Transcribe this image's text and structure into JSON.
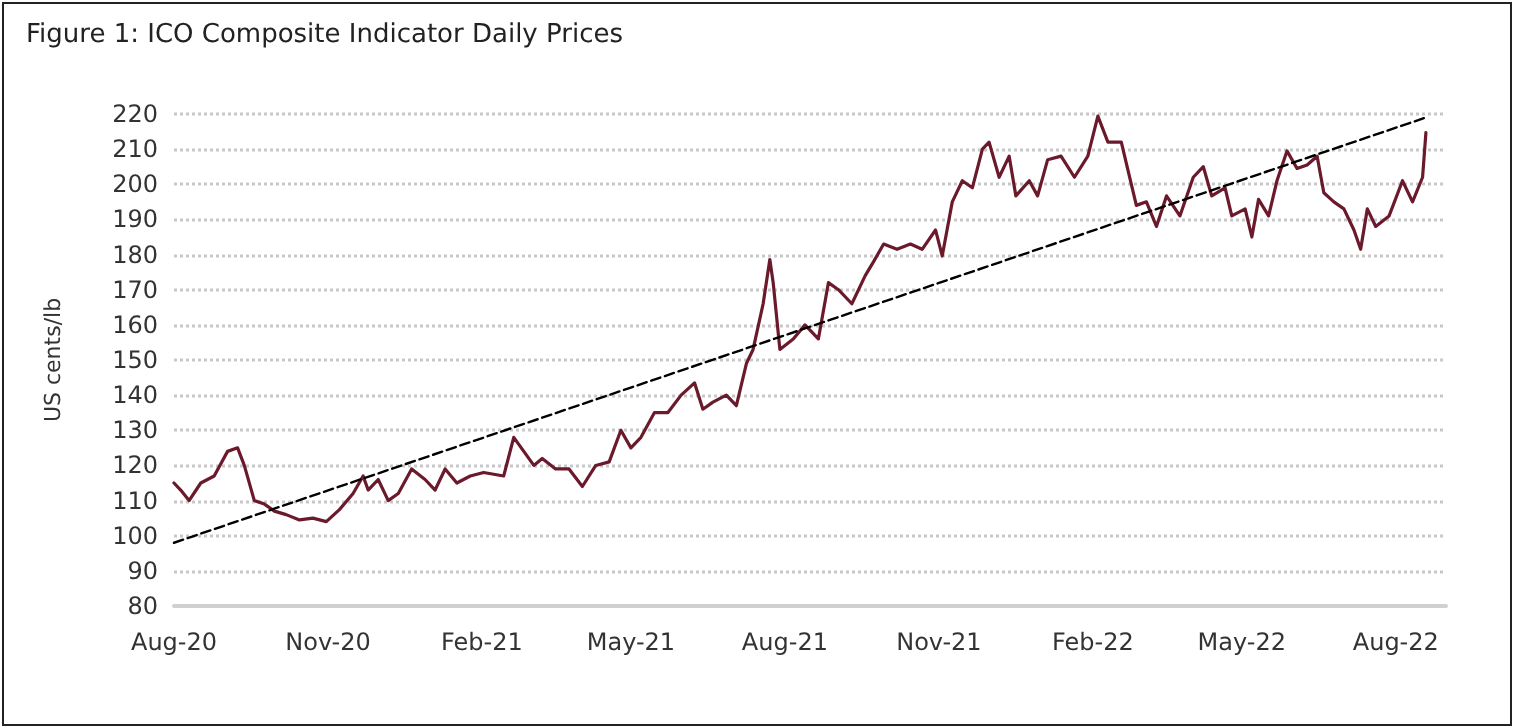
{
  "chart_data": {
    "type": "line",
    "title": "Figure 1: ICO Composite Indicator Daily Prices",
    "ylabel": "US cents/lb",
    "xlim": [
      "2020-08-01",
      "2022-08-31"
    ],
    "xticks": [
      {
        "value": "2020-08-01",
        "label": "Aug-20"
      },
      {
        "value": "2020-11-01",
        "label": "Nov-20"
      },
      {
        "value": "2021-02-01",
        "label": "Feb-21"
      },
      {
        "value": "2021-05-01",
        "label": "May-21"
      },
      {
        "value": "2021-08-01",
        "label": "Aug-21"
      },
      {
        "value": "2021-11-01",
        "label": "Nov-21"
      },
      {
        "value": "2022-02-01",
        "label": "Feb-22"
      },
      {
        "value": "2022-05-01",
        "label": "May-22"
      },
      {
        "value": "2022-08-01",
        "label": "Aug-22"
      }
    ],
    "ylim": [
      80,
      220
    ],
    "yticks": [
      80,
      90,
      100,
      110,
      120,
      130,
      140,
      150,
      160,
      170,
      180,
      190,
      200,
      210,
      220
    ],
    "grid": "y",
    "marker": "none",
    "series": [
      {
        "color": "#6b1a2c",
        "line_style": "solid",
        "x": [
          "2020-08-01",
          "2020-08-05",
          "2020-08-10",
          "2020-08-17",
          "2020-08-25",
          "2020-09-02",
          "2020-09-08",
          "2020-09-12",
          "2020-09-18",
          "2020-09-24",
          "2020-09-30",
          "2020-10-07",
          "2020-10-15",
          "2020-10-23",
          "2020-10-31",
          "2020-11-08",
          "2020-11-16",
          "2020-11-22",
          "2020-11-25",
          "2020-12-01",
          "2020-12-07",
          "2020-12-13",
          "2020-12-21",
          "2020-12-29",
          "2021-01-04",
          "2021-01-10",
          "2021-01-17",
          "2021-01-25",
          "2021-02-02",
          "2021-02-14",
          "2021-02-20",
          "2021-02-26",
          "2021-03-04",
          "2021-03-09",
          "2021-03-17",
          "2021-03-25",
          "2021-04-02",
          "2021-04-10",
          "2021-04-18",
          "2021-04-25",
          "2021-05-01",
          "2021-05-07",
          "2021-05-15",
          "2021-05-23",
          "2021-05-31",
          "2021-06-08",
          "2021-06-13",
          "2021-06-19",
          "2021-06-27",
          "2021-07-03",
          "2021-07-09",
          "2021-07-13",
          "2021-07-19",
          "2021-07-23",
          "2021-07-25",
          "2021-07-29",
          "2021-08-06",
          "2021-08-13",
          "2021-08-21",
          "2021-08-27",
          "2021-09-02",
          "2021-09-10",
          "2021-09-18",
          "2021-09-23",
          "2021-09-29",
          "2021-10-07",
          "2021-10-15",
          "2021-10-22",
          "2021-10-30",
          "2021-11-03",
          "2021-11-09",
          "2021-11-15",
          "2021-11-21",
          "2021-11-27",
          "2021-12-01",
          "2021-12-07",
          "2021-12-13",
          "2021-12-17",
          "2021-12-25",
          "2021-12-30",
          "2022-01-05",
          "2022-01-13",
          "2022-01-21",
          "2022-01-29",
          "2022-02-04",
          "2022-02-10",
          "2022-02-18",
          "2022-02-23",
          "2022-02-27",
          "2022-03-05",
          "2022-03-11",
          "2022-03-17",
          "2022-03-25",
          "2022-04-02",
          "2022-04-08",
          "2022-04-13",
          "2022-04-21",
          "2022-04-25",
          "2022-05-03",
          "2022-05-07",
          "2022-05-11",
          "2022-05-17",
          "2022-05-22",
          "2022-05-28",
          "2022-06-03",
          "2022-06-09",
          "2022-06-15",
          "2022-06-19",
          "2022-06-25",
          "2022-07-01",
          "2022-07-07",
          "2022-07-11",
          "2022-07-15",
          "2022-07-20",
          "2022-07-28",
          "2022-08-05",
          "2022-08-11",
          "2022-08-17",
          "2022-08-19"
        ],
        "values": [
          115,
          113,
          110,
          115,
          117,
          124,
          125,
          120,
          110,
          109,
          107,
          106,
          104.5,
          105,
          104,
          107.5,
          112,
          117,
          113,
          116,
          110,
          112,
          119,
          116,
          113,
          119,
          115,
          117,
          118,
          117,
          128,
          124,
          120,
          122,
          119,
          119,
          114,
          120,
          121,
          130,
          125,
          128,
          135,
          135,
          140,
          143.5,
          136,
          138,
          140,
          137,
          149,
          153,
          166,
          178.6,
          172,
          153,
          156,
          160,
          156,
          172,
          170,
          166,
          174,
          178,
          183,
          181.5,
          183,
          181.5,
          187,
          179.6,
          195,
          201,
          199,
          210,
          212,
          202,
          208,
          196.7,
          201,
          196.7,
          207,
          208,
          202,
          208,
          219.4,
          212,
          212,
          202,
          194,
          195,
          188,
          196.7,
          191,
          202,
          205,
          196.7,
          199,
          191,
          193,
          185,
          195.7,
          191,
          201,
          209.5,
          204.5,
          205.5,
          208,
          197.6,
          195,
          193,
          187,
          181.5,
          193,
          188,
          191,
          201,
          195,
          202,
          214.7
        ]
      },
      {
        "color": "#000000",
        "line_style": "dashed",
        "x": [
          "2020-08-01",
          "2022-08-19"
        ],
        "values": [
          98,
          219
        ]
      }
    ]
  }
}
